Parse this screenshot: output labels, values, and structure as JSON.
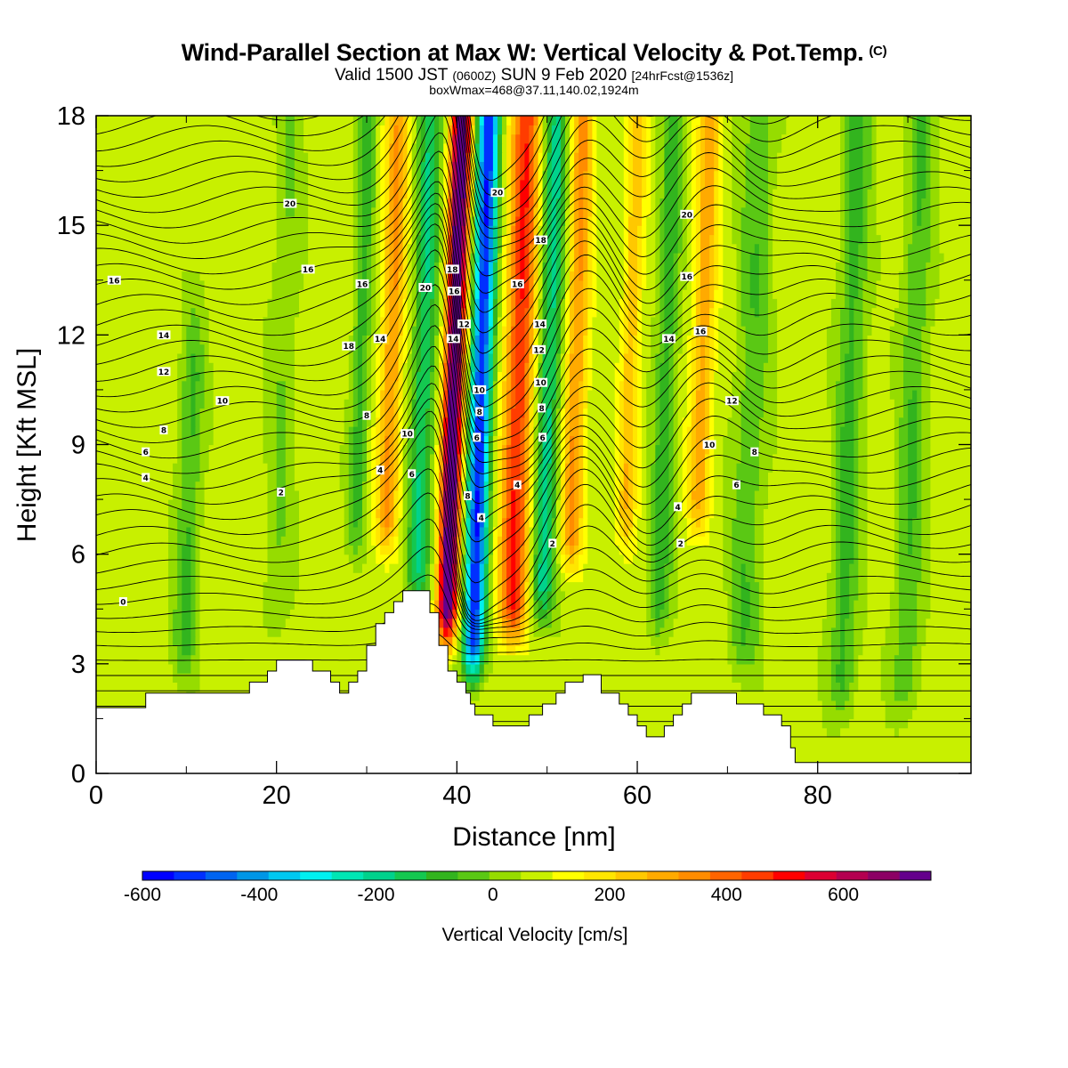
{
  "title": "Wind-Parallel Section at Max W: Vertical Velocity & Pot.Temp.",
  "title_tag": "(C)",
  "subtitle_a": "Valid 1500 JST",
  "subtitle_b": "(0600Z)",
  "subtitle_c": "SUN 9 Feb 2020",
  "subtitle_d": "[24hrFcst@1536z]",
  "boxline": "boxWmax=468@37.11,140.02,1924m",
  "chart_data": {
    "type": "heatmap",
    "xlabel": "Distance [nm]",
    "ylabel": "Height [Kft MSL]",
    "xlim": [
      0,
      97
    ],
    "ylim": [
      0,
      18
    ],
    "x_ticks": [
      "0",
      "20",
      "40",
      "60",
      "80"
    ],
    "x_tick_values": [
      0,
      20,
      40,
      60,
      80
    ],
    "y_ticks": [
      "0",
      "3",
      "6",
      "9",
      "12",
      "15",
      "18"
    ],
    "y_tick_values": [
      0,
      3,
      6,
      9,
      12,
      15,
      18
    ],
    "grid": false,
    "colorbar": {
      "label": "Vertical Velocity [cm/s]",
      "min": -600,
      "max": 750,
      "step": 50,
      "tick_labels": [
        "-600",
        "-400",
        "-200",
        "0",
        "200",
        "400",
        "600"
      ],
      "tick_values": [
        -600,
        -400,
        -200,
        0,
        200,
        400,
        600
      ],
      "colors": [
        "#0000ff",
        "#0030ff",
        "#0064f0",
        "#0096e6",
        "#00c8f0",
        "#00f0f0",
        "#00e6b4",
        "#00d28c",
        "#14c850",
        "#32b41e",
        "#5ac814",
        "#96dc00",
        "#c8f000",
        "#ffff00",
        "#ffe600",
        "#ffc800",
        "#ffaa00",
        "#ff8c00",
        "#ff6400",
        "#ff3c00",
        "#ff0000",
        "#dc0032",
        "#b40050",
        "#8c0064",
        "#64008c"
      ]
    },
    "terrain_kft": [
      [
        0,
        1.8
      ],
      [
        5.5,
        1.8
      ],
      [
        5.5,
        2.2
      ],
      [
        17,
        2.2
      ],
      [
        17,
        2.5
      ],
      [
        19,
        2.5
      ],
      [
        19,
        2.8
      ],
      [
        20,
        2.8
      ],
      [
        20,
        3.1
      ],
      [
        24,
        3.1
      ],
      [
        24,
        2.8
      ],
      [
        26,
        2.8
      ],
      [
        26,
        2.5
      ],
      [
        27,
        2.5
      ],
      [
        27,
        2.2
      ],
      [
        28,
        2.2
      ],
      [
        28,
        2.5
      ],
      [
        29,
        2.5
      ],
      [
        29,
        2.8
      ],
      [
        30,
        2.8
      ],
      [
        30,
        3.5
      ],
      [
        31,
        3.5
      ],
      [
        31,
        4.1
      ],
      [
        32,
        4.1
      ],
      [
        32,
        4.4
      ],
      [
        33,
        4.4
      ],
      [
        33,
        4.7
      ],
      [
        34,
        4.7
      ],
      [
        34,
        5.0
      ],
      [
        37,
        5.0
      ],
      [
        37,
        4.4
      ],
      [
        38,
        4.4
      ],
      [
        38,
        3.5
      ],
      [
        39,
        3.5
      ],
      [
        39,
        2.8
      ],
      [
        40,
        2.8
      ],
      [
        40,
        2.5
      ],
      [
        41,
        2.5
      ],
      [
        41,
        2.2
      ],
      [
        41.5,
        2.2
      ],
      [
        41.5,
        1.9
      ],
      [
        42,
        1.9
      ],
      [
        42,
        1.6
      ],
      [
        44,
        1.6
      ],
      [
        44,
        1.3
      ],
      [
        48,
        1.3
      ],
      [
        48,
        1.6
      ],
      [
        49.5,
        1.6
      ],
      [
        49.5,
        1.9
      ],
      [
        51,
        1.9
      ],
      [
        51,
        2.2
      ],
      [
        52,
        2.2
      ],
      [
        52,
        2.5
      ],
      [
        54,
        2.5
      ],
      [
        54,
        2.7
      ],
      [
        56,
        2.7
      ],
      [
        56,
        2.2
      ],
      [
        58,
        2.2
      ],
      [
        58,
        1.9
      ],
      [
        59,
        1.9
      ],
      [
        59,
        1.6
      ],
      [
        60,
        1.6
      ],
      [
        60,
        1.3
      ],
      [
        61,
        1.3
      ],
      [
        61,
        1.0
      ],
      [
        63,
        1.0
      ],
      [
        63,
        1.3
      ],
      [
        64,
        1.3
      ],
      [
        64,
        1.6
      ],
      [
        65,
        1.6
      ],
      [
        65,
        1.9
      ],
      [
        66,
        1.9
      ],
      [
        66,
        2.2
      ],
      [
        71,
        2.2
      ],
      [
        71,
        1.9
      ],
      [
        74,
        1.9
      ],
      [
        74,
        1.6
      ],
      [
        76,
        1.6
      ],
      [
        76,
        1.3
      ],
      [
        77,
        1.3
      ],
      [
        77,
        0.7
      ],
      [
        77.5,
        0.7
      ],
      [
        77.5,
        0.3
      ],
      [
        97,
        0.3
      ]
    ],
    "w_field_description_free": true,
    "contour_labels": [
      {
        "text": "0",
        "x": 3,
        "y": 4.7
      },
      {
        "text": "2",
        "x": 20.5,
        "y": 7.7
      },
      {
        "text": "4",
        "x": 5.5,
        "y": 8.1
      },
      {
        "text": "6",
        "x": 5.5,
        "y": 8.8
      },
      {
        "text": "8",
        "x": 7.5,
        "y": 9.4
      },
      {
        "text": "10",
        "x": 14,
        "y": 10.2
      },
      {
        "text": "12",
        "x": 7.5,
        "y": 11.0
      },
      {
        "text": "14",
        "x": 7.5,
        "y": 12.0
      },
      {
        "text": "16",
        "x": 2,
        "y": 13.5
      },
      {
        "text": "16",
        "x": 23.5,
        "y": 13.8
      },
      {
        "text": "20",
        "x": 21.5,
        "y": 15.6
      },
      {
        "text": "16",
        "x": 29.5,
        "y": 13.4
      },
      {
        "text": "18",
        "x": 28,
        "y": 11.7
      },
      {
        "text": "14",
        "x": 31.5,
        "y": 11.9
      },
      {
        "text": "8",
        "x": 30,
        "y": 9.8
      },
      {
        "text": "10",
        "x": 34.5,
        "y": 9.3
      },
      {
        "text": "4",
        "x": 31.5,
        "y": 8.3
      },
      {
        "text": "6",
        "x": 35,
        "y": 8.2
      },
      {
        "text": "20",
        "x": 36.5,
        "y": 13.3
      },
      {
        "text": "18",
        "x": 39.5,
        "y": 13.8
      },
      {
        "text": "16",
        "x": 39.7,
        "y": 13.2
      },
      {
        "text": "12",
        "x": 40.8,
        "y": 12.3
      },
      {
        "text": "14",
        "x": 39.6,
        "y": 11.9
      },
      {
        "text": "10",
        "x": 42.5,
        "y": 10.5
      },
      {
        "text": "8",
        "x": 42.5,
        "y": 9.9
      },
      {
        "text": "6",
        "x": 42.2,
        "y": 9.2
      },
      {
        "text": "8",
        "x": 41.2,
        "y": 7.6
      },
      {
        "text": "4",
        "x": 42.7,
        "y": 7.0
      },
      {
        "text": "20",
        "x": 44.5,
        "y": 15.9
      },
      {
        "text": "18",
        "x": 49.3,
        "y": 14.6
      },
      {
        "text": "16",
        "x": 46.7,
        "y": 13.4
      },
      {
        "text": "14",
        "x": 49.2,
        "y": 12.3
      },
      {
        "text": "12",
        "x": 49.1,
        "y": 11.6
      },
      {
        "text": "10",
        "x": 49.3,
        "y": 10.7
      },
      {
        "text": "8",
        "x": 49.4,
        "y": 10.0
      },
      {
        "text": "6",
        "x": 49.5,
        "y": 9.2
      },
      {
        "text": "4",
        "x": 46.7,
        "y": 7.9
      },
      {
        "text": "2",
        "x": 50.6,
        "y": 6.3
      },
      {
        "text": "20",
        "x": 65.5,
        "y": 15.3
      },
      {
        "text": "16",
        "x": 65.5,
        "y": 13.6
      },
      {
        "text": "14",
        "x": 63.5,
        "y": 11.9
      },
      {
        "text": "16",
        "x": 67,
        "y": 12.1
      },
      {
        "text": "12",
        "x": 70.5,
        "y": 10.2
      },
      {
        "text": "10",
        "x": 68,
        "y": 9.0
      },
      {
        "text": "8",
        "x": 73,
        "y": 8.8
      },
      {
        "text": "6",
        "x": 71,
        "y": 7.9
      },
      {
        "text": "4",
        "x": 64.5,
        "y": 7.3
      },
      {
        "text": "2",
        "x": 64.8,
        "y": 6.3
      }
    ]
  }
}
